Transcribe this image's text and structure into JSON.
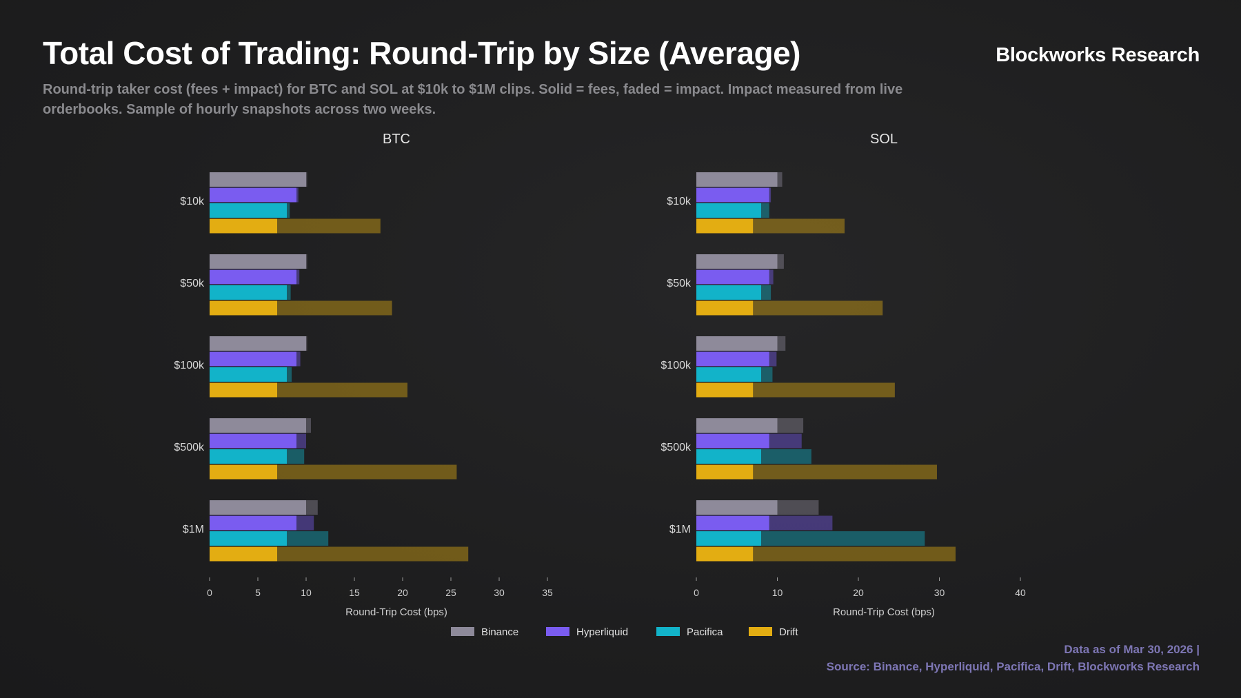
{
  "header": {
    "title": "Total Cost of Trading: Round-Trip by Size (Average)",
    "brand": "Blockworks Research",
    "subtitle": "Round-trip taker cost (fees + impact) for BTC and SOL at $10k to $1M clips. Solid = fees, faded = impact. Impact measured from live orderbooks. Sample of hourly snapshots across two weeks."
  },
  "footer": {
    "line1": "Data as of Mar 30, 2026 |",
    "line2": "Source: Binance, Hyperliquid, Pacifica, Drift, Blockworks Research"
  },
  "colors": {
    "Binance": "#8e8a9a",
    "Hyperliquid": "#7a5cf0",
    "Pacifica": "#12b3c9",
    "Drift": "#e3ad12"
  },
  "chart_data": [
    {
      "type": "bar",
      "orientation": "horizontal",
      "stacked": true,
      "title": "BTC",
      "xlabel": "Round-Trip Cost (bps)",
      "xlim": [
        0,
        35
      ],
      "xticks": [
        0,
        5,
        10,
        15,
        20,
        25,
        30,
        35
      ],
      "categories": [
        "$10k",
        "$50k",
        "$100k",
        "$500k",
        "$1M"
      ],
      "components": [
        "fees",
        "impact"
      ],
      "series": [
        {
          "name": "Binance",
          "fees": [
            10,
            10,
            10,
            10,
            10
          ],
          "impact": [
            0.1,
            0.1,
            0.1,
            0.5,
            1.2
          ]
        },
        {
          "name": "Hyperliquid",
          "fees": [
            9,
            9,
            9,
            9,
            9
          ],
          "impact": [
            0.2,
            0.3,
            0.4,
            1.0,
            1.8
          ]
        },
        {
          "name": "Pacifica",
          "fees": [
            8,
            8,
            8,
            8,
            8
          ],
          "impact": [
            0.3,
            0.4,
            0.5,
            1.8,
            4.3
          ]
        },
        {
          "name": "Drift",
          "fees": [
            7,
            7,
            7,
            7,
            7
          ],
          "impact": [
            10.7,
            11.9,
            13.5,
            18.6,
            19.8
          ]
        }
      ],
      "legend": [
        "Binance",
        "Hyperliquid",
        "Pacifica",
        "Drift"
      ],
      "legend_position": "bottom"
    },
    {
      "type": "bar",
      "orientation": "horizontal",
      "stacked": true,
      "title": "SOL",
      "xlabel": "Round-Trip Cost (bps)",
      "xlim": [
        0,
        40
      ],
      "xticks": [
        0,
        10,
        20,
        30,
        40
      ],
      "categories": [
        "$10k",
        "$50k",
        "$100k",
        "$500k",
        "$1M"
      ],
      "components": [
        "fees",
        "impact"
      ],
      "series": [
        {
          "name": "Binance",
          "fees": [
            10,
            10,
            10,
            10,
            10
          ],
          "impact": [
            0.6,
            0.8,
            1.0,
            3.2,
            5.1
          ]
        },
        {
          "name": "Hyperliquid",
          "fees": [
            9,
            9,
            9,
            9,
            9
          ],
          "impact": [
            0.2,
            0.5,
            0.9,
            4.0,
            7.8
          ]
        },
        {
          "name": "Pacifica",
          "fees": [
            8,
            8,
            8,
            8,
            8
          ],
          "impact": [
            1.0,
            1.2,
            1.4,
            6.2,
            20.2
          ]
        },
        {
          "name": "Drift",
          "fees": [
            7,
            7,
            7,
            7,
            7
          ],
          "impact": [
            11.3,
            16.0,
            17.5,
            22.7,
            25.0
          ]
        }
      ]
    }
  ]
}
